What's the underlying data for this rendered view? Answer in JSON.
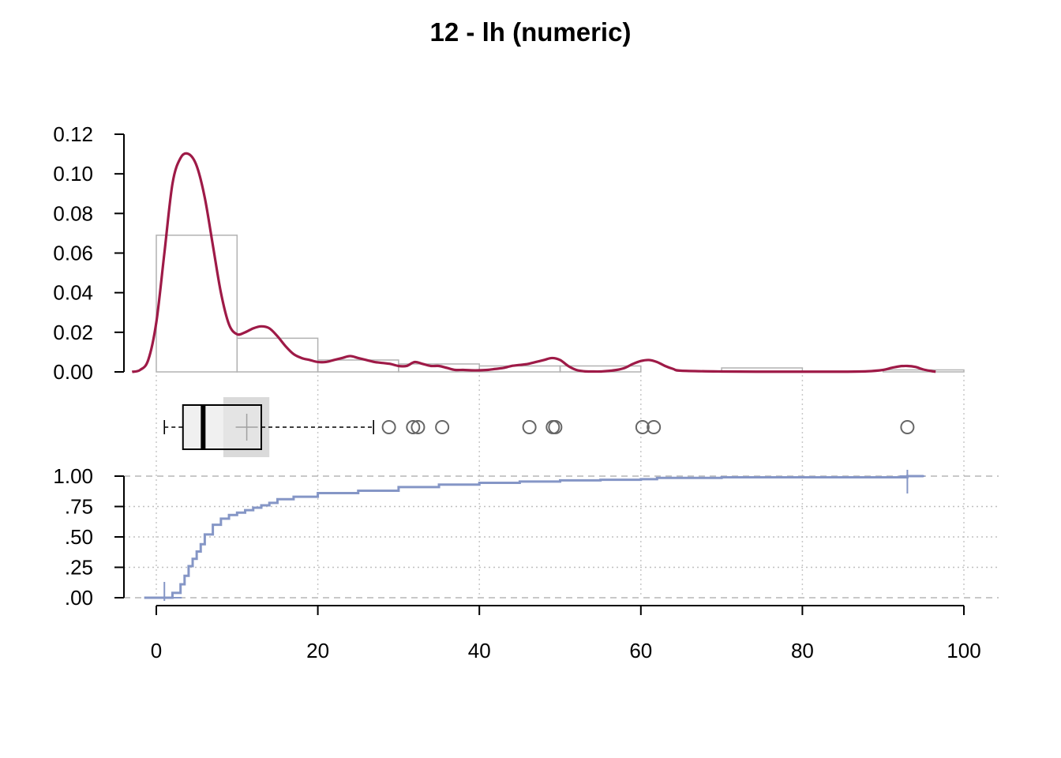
{
  "chart_data": {
    "type": "histogram-boxplot-ecdf",
    "title": "12 - lh (numeric)",
    "xlim": [
      0,
      100
    ],
    "x_ticks": [
      "0",
      "20",
      "40",
      "60",
      "80",
      "100"
    ],
    "x_tick_values": [
      0,
      20,
      40,
      60,
      80,
      100
    ],
    "grid": true,
    "density_panel": {
      "ylim": [
        0,
        0.12
      ],
      "y_ticks": [
        "0.00",
        "0.02",
        "0.04",
        "0.06",
        "0.08",
        "0.10",
        "0.12"
      ],
      "y_tick_values": [
        0,
        0.02,
        0.04,
        0.06,
        0.08,
        0.1,
        0.12
      ],
      "histogram": {
        "bin_edges": [
          0,
          10,
          20,
          30,
          40,
          50,
          60,
          70,
          80,
          90,
          100
        ],
        "density": [
          0.069,
          0.017,
          0.006,
          0.004,
          0.003,
          0.003,
          0.0,
          0.002,
          0.0,
          0.001
        ]
      },
      "density_curve": {
        "x": [
          -3,
          -2,
          -1,
          0,
          1,
          2,
          3,
          4,
          5,
          6,
          7,
          8,
          9,
          10,
          11,
          12,
          13,
          14,
          15,
          16,
          17,
          18,
          19,
          20,
          21,
          22,
          23,
          24,
          25,
          26,
          27,
          28,
          29,
          30,
          31,
          32,
          33,
          34,
          35,
          36,
          37,
          38,
          39,
          40,
          41,
          42,
          43,
          44,
          45,
          46,
          47,
          48,
          49,
          50,
          51,
          52,
          53,
          54,
          55,
          56,
          57,
          58,
          59,
          60,
          61,
          62,
          63,
          64,
          65,
          70,
          75,
          80,
          85,
          88,
          90,
          91,
          92,
          93,
          94,
          95,
          96,
          96.5
        ],
        "y": [
          0.0,
          0.001,
          0.006,
          0.025,
          0.06,
          0.095,
          0.108,
          0.11,
          0.104,
          0.088,
          0.064,
          0.04,
          0.024,
          0.019,
          0.02,
          0.022,
          0.023,
          0.022,
          0.018,
          0.013,
          0.009,
          0.007,
          0.006,
          0.005,
          0.005,
          0.006,
          0.007,
          0.008,
          0.007,
          0.006,
          0.005,
          0.0045,
          0.004,
          0.003,
          0.003,
          0.005,
          0.004,
          0.003,
          0.003,
          0.002,
          0.001,
          0.001,
          0.0008,
          0.0008,
          0.001,
          0.0015,
          0.002,
          0.003,
          0.0035,
          0.004,
          0.005,
          0.006,
          0.007,
          0.006,
          0.003,
          0.001,
          0.0003,
          0.0002,
          0.0002,
          0.0005,
          0.001,
          0.002,
          0.004,
          0.0055,
          0.006,
          0.005,
          0.003,
          0.0015,
          0.0006,
          0.0002,
          0.0001,
          0.0001,
          0.0001,
          0.0003,
          0.001,
          0.002,
          0.0028,
          0.003,
          0.0025,
          0.0012,
          0.0004,
          0.0001
        ]
      }
    },
    "boxplot": {
      "min_whisker": 1,
      "q1": 3.3,
      "median": 5.8,
      "q3": 13,
      "max_whisker": 26.9,
      "mean": 11.2,
      "mean_ci": [
        8.3,
        14
      ],
      "outliers": [
        28.8,
        31.8,
        32.4,
        35.4,
        46.2,
        49.1,
        49.4,
        60.2,
        61.6,
        93
      ]
    },
    "ecdf_panel": {
      "ylim": [
        0,
        1
      ],
      "y_ticks": [
        ".00",
        ".25",
        ".50",
        ".75",
        "1.00"
      ],
      "y_tick_values": [
        0,
        0.25,
        0.5,
        0.75,
        1
      ],
      "x": [
        1,
        2,
        3,
        3.5,
        4,
        4.5,
        5,
        5.5,
        6,
        7,
        8,
        9,
        10,
        11,
        12,
        13,
        14,
        15,
        17,
        20,
        25,
        30,
        35,
        40,
        45,
        50,
        55,
        60,
        62,
        70,
        93,
        95
      ],
      "y": [
        0,
        0.04,
        0.11,
        0.18,
        0.26,
        0.32,
        0.38,
        0.44,
        0.52,
        0.6,
        0.65,
        0.68,
        0.7,
        0.72,
        0.74,
        0.76,
        0.78,
        0.81,
        0.83,
        0.86,
        0.88,
        0.91,
        0.93,
        0.945,
        0.955,
        0.965,
        0.97,
        0.975,
        0.985,
        0.99,
        1,
        1
      ]
    }
  }
}
